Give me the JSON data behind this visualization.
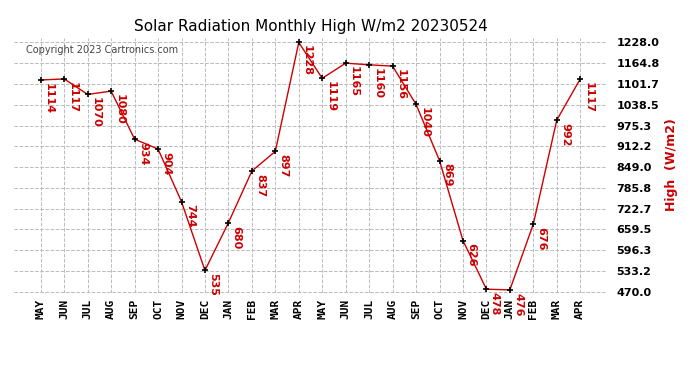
{
  "title": "Solar Radiation Monthly High W/m2 20230524",
  "ylabel": "High  (W/m2)",
  "copyright": "Copyright 2023 Cartronics.com",
  "months": [
    "MAY",
    "JUN",
    "JUL",
    "AUG",
    "SEP",
    "OCT",
    "NOV",
    "DEC",
    "JAN",
    "FEB",
    "MAR",
    "APR",
    "MAY",
    "JUN",
    "JUL",
    "AUG",
    "SEP",
    "OCT",
    "NOV",
    "DEC",
    "JAN",
    "FEB",
    "MAR",
    "APR"
  ],
  "values": [
    1114,
    1117,
    1070,
    1080,
    934,
    904,
    744,
    535,
    680,
    837,
    897,
    1228,
    1119,
    1165,
    1160,
    1156,
    1040,
    869,
    626,
    478,
    476,
    676,
    992,
    1117
  ],
  "line_color": "#cc0000",
  "marker_color": "#000000",
  "label_color": "#cc0000",
  "ylabel_color": "#cc0000",
  "title_color": "#000000",
  "bg_color": "#ffffff",
  "grid_color": "#bbbbbb",
  "ylim_min": 470.0,
  "ylim_max": 1228.0,
  "yticks": [
    470.0,
    533.2,
    596.3,
    659.5,
    722.7,
    785.8,
    849.0,
    912.2,
    975.3,
    1038.5,
    1101.7,
    1164.8,
    1228.0
  ]
}
